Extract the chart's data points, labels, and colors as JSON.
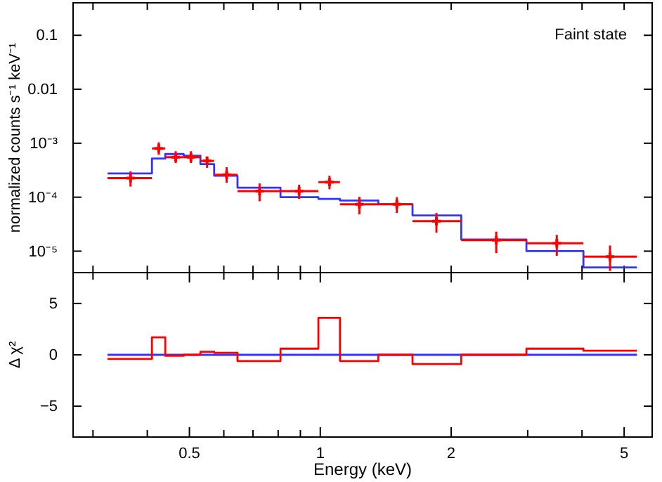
{
  "chart_data": [
    {
      "type": "step",
      "log": "xy",
      "ylabel": "normalized counts s⁻¹ keV⁻¹",
      "annotations": [
        "Faint state"
      ],
      "tick_labels": "y",
      "xlim": [
        0.27,
        5.8
      ],
      "ylim": [
        4e-06,
        0.4
      ],
      "xticks": [
        {
          "value": 0.3,
          "label": null
        },
        {
          "value": 0.4,
          "label": null
        },
        {
          "value": 0.5,
          "label": null
        },
        {
          "value": 0.6,
          "label": null
        },
        {
          "value": 0.7,
          "label": null
        },
        {
          "value": 0.8,
          "label": null
        },
        {
          "value": 0.9,
          "label": null
        },
        {
          "value": 1,
          "label": null
        },
        {
          "value": 2,
          "label": null
        },
        {
          "value": 3,
          "label": null
        },
        {
          "value": 4,
          "label": null
        },
        {
          "value": 5,
          "label": null
        }
      ],
      "yticks": [
        {
          "value": 1e-05,
          "label": "10⁻⁵"
        },
        {
          "value": 0.0001,
          "label": "10⁻⁴"
        },
        {
          "value": 0.001,
          "label": "10⁻³"
        },
        {
          "value": 0.01,
          "label": "0.01"
        },
        {
          "value": 0.1,
          "label": "0.1"
        }
      ],
      "series": [
        {
          "type": "step",
          "color": "#3333ff",
          "x": [
            0.324,
            0.41,
            0.44,
            0.485,
            0.53,
            0.57,
            0.645,
            0.81,
            0.99,
            1.11,
            1.36,
            1.63,
            2.11,
            2.98,
            4.03,
            5.35
          ],
          "values": [
            0.000275,
            0.00052,
            0.00063,
            0.000585,
            0.00041,
            0.00025,
            0.00015,
            0.0001,
            9.3e-05,
            8.7e-05,
            7.4e-05,
            4.6e-05,
            1.64e-05,
            1e-05,
            5e-06,
            5e-06
          ]
        },
        {
          "type": "scatter",
          "color": "#ff0000",
          "marker": "cross",
          "x": [
            0.366,
            0.425,
            0.465,
            0.504,
            0.549,
            0.609,
            0.725,
            0.894,
            1.05,
            1.23,
            1.5,
            1.85,
            2.54,
            3.5,
            4.64
          ],
          "values": [
            0.000225,
            0.0008,
            0.00055,
            0.00055,
            0.00047,
            0.00026,
            0.00013,
            0.00013,
            0.00019,
            7.4e-05,
            7.4e-05,
            3.6e-05,
            1.6e-05,
            1.4e-05,
            7.9e-06
          ],
          "xerrors": [
            [
              0.324,
              0.41
            ],
            [
              0.41,
              0.44
            ],
            [
              0.44,
              0.485
            ],
            [
              0.485,
              0.53
            ],
            [
              0.53,
              0.57
            ],
            [
              0.57,
              0.645
            ],
            [
              0.645,
              0.81
            ],
            [
              0.81,
              0.99
            ],
            [
              0.99,
              1.11
            ],
            [
              1.11,
              1.36
            ],
            [
              1.36,
              1.63
            ],
            [
              1.63,
              2.11
            ],
            [
              2.11,
              2.98
            ],
            [
              2.98,
              4.03
            ],
            [
              4.03,
              5.35
            ]
          ],
          "errors": [
            [
              0.000157,
              0.0003
            ],
            [
              0.00061,
              0.00104
            ],
            [
              0.00043,
              0.00071
            ],
            [
              0.00043,
              0.00071
            ],
            [
              0.00035,
              0.00057
            ],
            [
              0.000185,
              0.00036
            ],
            [
              8.4e-05,
              0.00018
            ],
            [
              9.3e-05,
              0.00017
            ],
            [
              0.00014,
              0.00025
            ],
            [
              4.8e-05,
              0.000102
            ],
            [
              5.1e-05,
              0.0001
            ],
            [
              2.2e-05,
              5.1e-05
            ],
            [
              9.2e-06,
              2.3e-05
            ],
            [
              8.2e-06,
              2e-05
            ],
            [
              4.3e-06,
              1.27e-05
            ]
          ]
        }
      ]
    },
    {
      "type": "step",
      "log": "x",
      "xlabel": "Energy (keV)",
      "ylabel": "Δ χ²",
      "xlim": [
        0.27,
        5.8
      ],
      "ylim": [
        -8,
        8
      ],
      "xticks": [
        {
          "value": 0.3,
          "label": null
        },
        {
          "value": 0.4,
          "label": null
        },
        {
          "value": 0.5,
          "label": "0.5"
        },
        {
          "value": 0.6,
          "label": null
        },
        {
          "value": 0.7,
          "label": null
        },
        {
          "value": 0.8,
          "label": null
        },
        {
          "value": 0.9,
          "label": null
        },
        {
          "value": 1,
          "label": "1"
        },
        {
          "value": 2,
          "label": "2"
        },
        {
          "value": 3,
          "label": null
        },
        {
          "value": 4,
          "label": null
        },
        {
          "value": 5,
          "label": "5"
        }
      ],
      "yticks": [
        {
          "value": -5,
          "label": "−5"
        },
        0,
        5
      ],
      "series": [
        {
          "type": "line",
          "color": "#3333ff",
          "x": [
            0.324,
            5.35
          ],
          "values": [
            0,
            0
          ]
        },
        {
          "type": "step",
          "color": "#ff0000",
          "x": [
            0.324,
            0.41,
            0.44,
            0.485,
            0.53,
            0.57,
            0.645,
            0.81,
            0.99,
            1.11,
            1.36,
            1.63,
            2.11,
            2.98,
            4.03,
            5.35
          ],
          "values": [
            -0.4,
            1.7,
            -0.1,
            0,
            0.3,
            0.2,
            -0.6,
            0.6,
            3.6,
            -0.6,
            0,
            -0.9,
            0,
            0.6,
            0.4,
            0.4
          ]
        }
      ]
    }
  ]
}
